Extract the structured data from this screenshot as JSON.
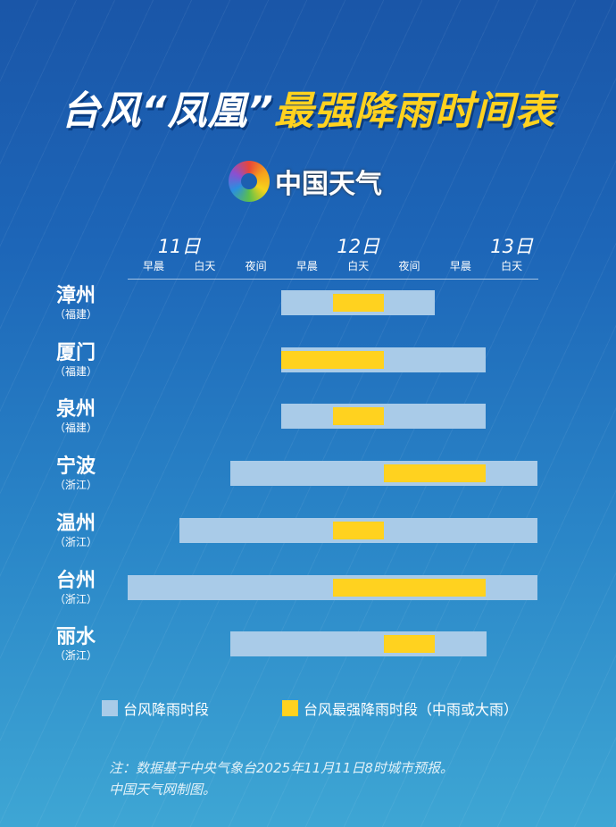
{
  "title": {
    "part1": "台风“凤凰”",
    "part2": "最强降雨时间表"
  },
  "logo": {
    "text": "中国天气"
  },
  "colors": {
    "rain": "#a9cbe8",
    "peak": "#ffd21f",
    "background_top": "#1a56a8",
    "background_bottom": "#3ea6d4"
  },
  "chart_data": {
    "type": "gantt",
    "days": [
      {
        "label": "11日",
        "period_index": 0.5
      },
      {
        "label": "12日",
        "period_index": 4
      },
      {
        "label": "13日",
        "period_index": 7
      }
    ],
    "periods": [
      "11日早晨",
      "11日白天",
      "11日夜间",
      "12日早晨",
      "12日白天",
      "12日夜间",
      "13日早晨",
      "13日白天"
    ],
    "period_labels": [
      "早晨",
      "白天",
      "夜间",
      "早晨",
      "白天",
      "夜间",
      "早晨",
      "白天"
    ],
    "rows": [
      {
        "city": "漳州",
        "province": "（福建）",
        "rain": [
          "12日早晨",
          "12日夜间"
        ],
        "peak": [
          "12日白天",
          "12日白天"
        ]
      },
      {
        "city": "厦门",
        "province": "（福建）",
        "rain": [
          "12日早晨",
          "13日早晨"
        ],
        "peak": [
          "12日早晨",
          "12日白天"
        ]
      },
      {
        "city": "泉州",
        "province": "（福建）",
        "rain": [
          "12日早晨",
          "13日早晨"
        ],
        "peak": [
          "12日白天",
          "12日白天"
        ]
      },
      {
        "city": "宁波",
        "province": "（浙江）",
        "rain": [
          "11日夜间",
          "13日白天"
        ],
        "peak": [
          "12日夜间",
          "13日早晨"
        ]
      },
      {
        "city": "温州",
        "province": "（浙江）",
        "rain": [
          "11日白天",
          "13日白天"
        ],
        "peak": [
          "12日白天",
          "12日白天"
        ]
      },
      {
        "city": "台州",
        "province": "（浙江）",
        "rain": [
          "11日早晨",
          "13日白天"
        ],
        "peak": [
          "12日白天",
          "13日早晨"
        ]
      },
      {
        "city": "丽水",
        "province": "（浙江）",
        "rain": [
          "11日夜间",
          "13日早晨"
        ],
        "peak": [
          "12日夜间",
          "12日夜间"
        ]
      }
    ],
    "legend": [
      {
        "label": "台风降雨时段",
        "color": "#a9cbe8"
      },
      {
        "label": "台风最强降雨时段（中雨或大雨）",
        "color": "#ffd21f"
      }
    ],
    "legend_position": "bottom"
  },
  "note": {
    "line1": "注：数据基于中央气象台2025年11月11日8时城市预报。",
    "line2": "中国天气网制图。"
  }
}
